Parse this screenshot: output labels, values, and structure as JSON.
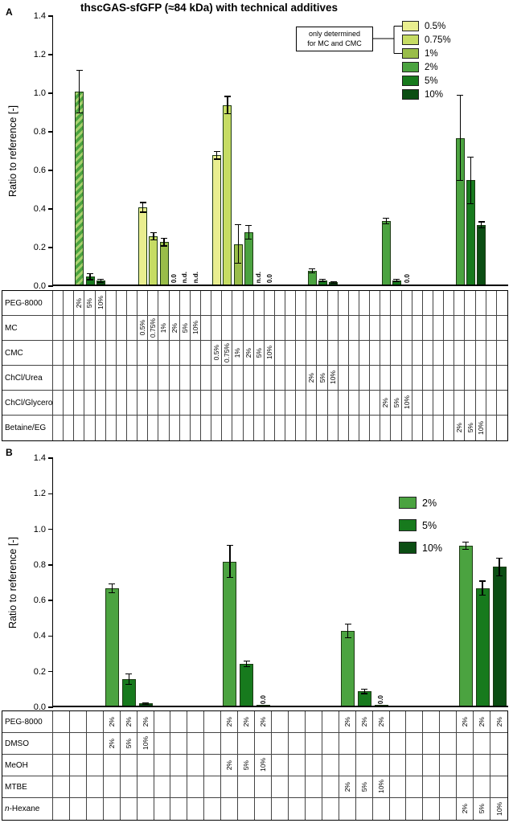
{
  "title": "thscGAS-sfGFP (≈84 kDa) with technical additives",
  "ylabel": "Ratio to reference [-]",
  "colors": {
    "0.5%": "#e9ee8f",
    "0.75%": "#c6dc63",
    "1%": "#99bd49",
    "2%": "#4ba340",
    "5%": "#177a1d",
    "10%": "#0b4e13",
    "bar_outline": "#1d3a14",
    "hatch_light": "#a8d06e"
  },
  "chart_data": [
    {
      "panel": "A",
      "type": "bar",
      "ylim": [
        0.0,
        1.4
      ],
      "yticks": [
        "0.0",
        "0.2",
        "0.4",
        "0.6",
        "0.8",
        "1.0",
        "1.2",
        "1.4"
      ],
      "legend": [
        "0.5%",
        "0.75%",
        "1%",
        "2%",
        "5%",
        "10%"
      ],
      "annotation_lines": [
        "only determined",
        "for MC and CMC"
      ],
      "row_labels": [
        "PEG-8000",
        "MC",
        "CMC",
        "ChCl/Urea",
        "ChCl/Glycerol",
        "Betaine/EG"
      ],
      "n_table_cols": 43,
      "groups": [
        {
          "additive": "PEG-8000",
          "row": 0,
          "cols": [
            2,
            3,
            4
          ],
          "bars": [
            {
              "conc": "2%",
              "value": 1.0,
              "err": 0.11,
              "hatched": true
            },
            {
              "conc": "5%",
              "value": 0.04,
              "err": 0.015
            },
            {
              "conc": "10%",
              "value": 0.02,
              "err": 0.008
            }
          ]
        },
        {
          "additive": "MC",
          "row": 1,
          "cols": [
            8,
            9,
            10,
            11,
            12,
            13
          ],
          "bars": [
            {
              "conc": "0.5%",
              "value": 0.4,
              "err": 0.025
            },
            {
              "conc": "0.75%",
              "value": 0.25,
              "err": 0.02
            },
            {
              "conc": "1%",
              "value": 0.22,
              "err": 0.02
            },
            {
              "conc": "2%",
              "value": 0.0,
              "label": "0.0"
            },
            {
              "conc": "5%",
              "label": "n.d."
            },
            {
              "conc": "10%",
              "label": "n.d."
            }
          ]
        },
        {
          "additive": "CMC",
          "row": 2,
          "cols": [
            15,
            16,
            17,
            18,
            19,
            20
          ],
          "bars": [
            {
              "conc": "0.5%",
              "value": 0.67,
              "err": 0.02
            },
            {
              "conc": "0.75%",
              "value": 0.93,
              "err": 0.045
            },
            {
              "conc": "1%",
              "value": 0.21,
              "err": 0.1
            },
            {
              "conc": "2%",
              "value": 0.27,
              "err": 0.035
            },
            {
              "conc": "5%",
              "label": "n.d."
            },
            {
              "conc": "10%",
              "value": 0.0,
              "label": "0.0"
            }
          ]
        },
        {
          "additive": "ChCl/Urea",
          "row": 3,
          "cols": [
            24,
            25,
            26
          ],
          "bars": [
            {
              "conc": "2%",
              "value": 0.07,
              "err": 0.01
            },
            {
              "conc": "5%",
              "value": 0.02,
              "err": 0.006
            },
            {
              "conc": "10%",
              "value": 0.012,
              "err": 0.004
            }
          ]
        },
        {
          "additive": "ChCl/Glycerol",
          "row": 4,
          "cols": [
            31,
            32,
            33
          ],
          "bars": [
            {
              "conc": "2%",
              "value": 0.33,
              "err": 0.015
            },
            {
              "conc": "5%",
              "value": 0.02,
              "err": 0.006
            },
            {
              "conc": "10%",
              "value": 0.0,
              "label": "0.0"
            }
          ]
        },
        {
          "additive": "Betaine/EG",
          "row": 5,
          "cols": [
            38,
            39,
            40
          ],
          "bars": [
            {
              "conc": "2%",
              "value": 0.76,
              "err": 0.22
            },
            {
              "conc": "5%",
              "value": 0.54,
              "err": 0.12
            },
            {
              "conc": "10%",
              "value": 0.31,
              "err": 0.015
            }
          ]
        }
      ]
    },
    {
      "panel": "B",
      "type": "bar",
      "ylim": [
        0.0,
        1.4
      ],
      "yticks": [
        "0.0",
        "0.2",
        "0.4",
        "0.6",
        "0.8",
        "1.0",
        "1.2",
        "1.4"
      ],
      "legend": [
        "2%",
        "5%",
        "10%"
      ],
      "row_labels": [
        "PEG-8000",
        "DMSO",
        "MeOH",
        "MTBE",
        "n-Hexane"
      ],
      "n_table_cols": 27,
      "peg_row": {
        "index": 0,
        "label": "2%"
      },
      "groups": [
        {
          "additive": "DMSO",
          "row": 1,
          "cols": [
            3,
            4,
            5
          ],
          "bars": [
            {
              "conc": "2%",
              "value": 0.66,
              "err": 0.025
            },
            {
              "conc": "5%",
              "value": 0.15,
              "err": 0.03
            },
            {
              "conc": "10%",
              "value": 0.012,
              "err": 0.005
            }
          ]
        },
        {
          "additive": "MeOH",
          "row": 2,
          "cols": [
            10,
            11,
            12
          ],
          "bars": [
            {
              "conc": "2%",
              "value": 0.81,
              "err": 0.09
            },
            {
              "conc": "5%",
              "value": 0.235,
              "err": 0.015
            },
            {
              "conc": "10%",
              "value": 0.005,
              "label": "0.0"
            }
          ]
        },
        {
          "additive": "MTBE",
          "row": 3,
          "cols": [
            17,
            18,
            19
          ],
          "bars": [
            {
              "conc": "2%",
              "value": 0.42,
              "err": 0.04
            },
            {
              "conc": "5%",
              "value": 0.08,
              "err": 0.012
            },
            {
              "conc": "10%",
              "value": 0.005,
              "label": "0.0"
            }
          ]
        },
        {
          "additive": "n-Hexane",
          "row": 4,
          "cols": [
            24,
            25,
            26
          ],
          "bars": [
            {
              "conc": "2%",
              "value": 0.9,
              "err": 0.02
            },
            {
              "conc": "5%",
              "value": 0.66,
              "err": 0.04
            },
            {
              "conc": "10%",
              "value": 0.78,
              "err": 0.05
            }
          ]
        }
      ]
    }
  ]
}
